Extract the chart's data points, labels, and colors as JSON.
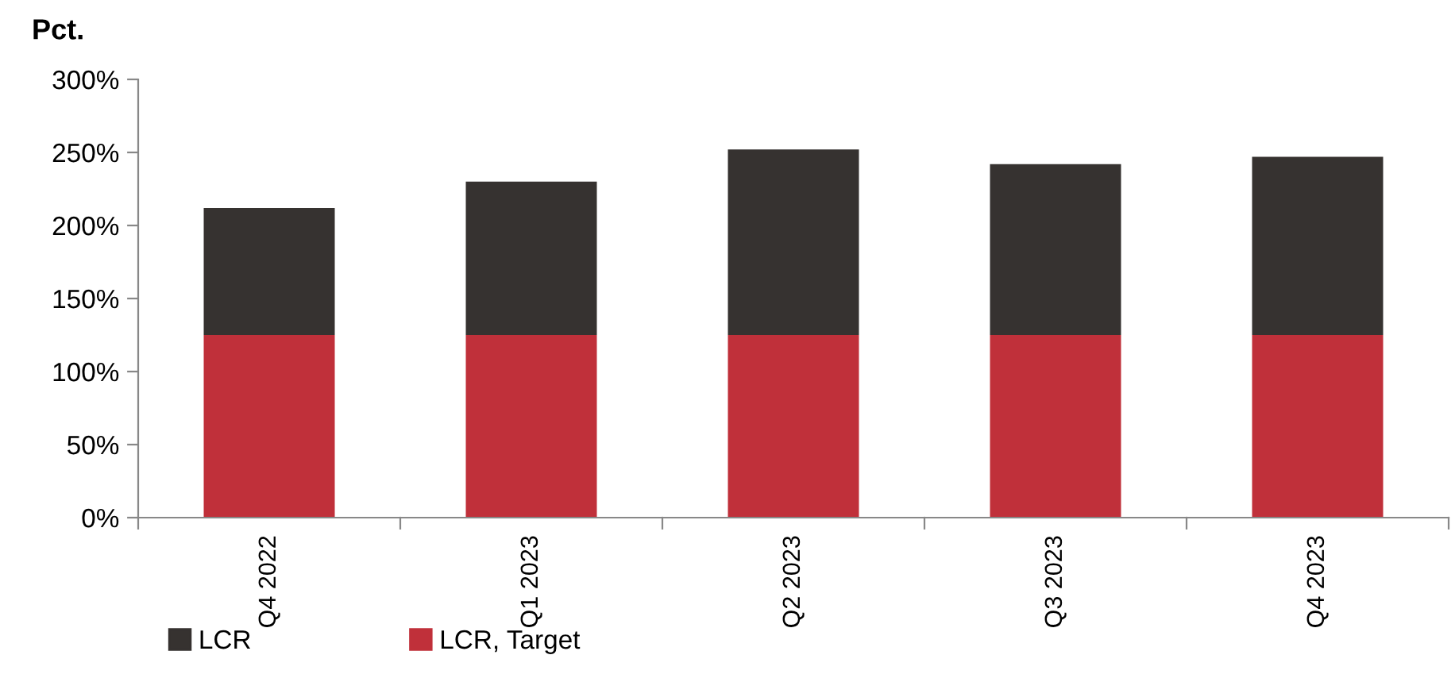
{
  "chart_data": {
    "type": "bar",
    "stacked": true,
    "ylabel": "Pct.",
    "categories": [
      "Q4 2022",
      "Q1 2023",
      "Q2 2023",
      "Q3 2023",
      "Q4 2023"
    ],
    "series": [
      {
        "name": "LCR, Target",
        "color": "#c0303a",
        "values": [
          125,
          125,
          125,
          125,
          125
        ]
      },
      {
        "name": "LCR",
        "color": "#363230",
        "values": [
          87,
          105,
          127,
          117,
          122
        ]
      }
    ],
    "ylim": [
      0,
      300
    ],
    "yticks": [
      {
        "value": 0,
        "label": "0%"
      },
      {
        "value": 50,
        "label": "50%"
      },
      {
        "value": 100,
        "label": "100%"
      },
      {
        "value": 150,
        "label": "150%"
      },
      {
        "value": 200,
        "label": "200%"
      },
      {
        "value": 250,
        "label": "250%"
      },
      {
        "value": 300,
        "label": "300%"
      }
    ],
    "grid": false,
    "legend": "bottom left"
  }
}
